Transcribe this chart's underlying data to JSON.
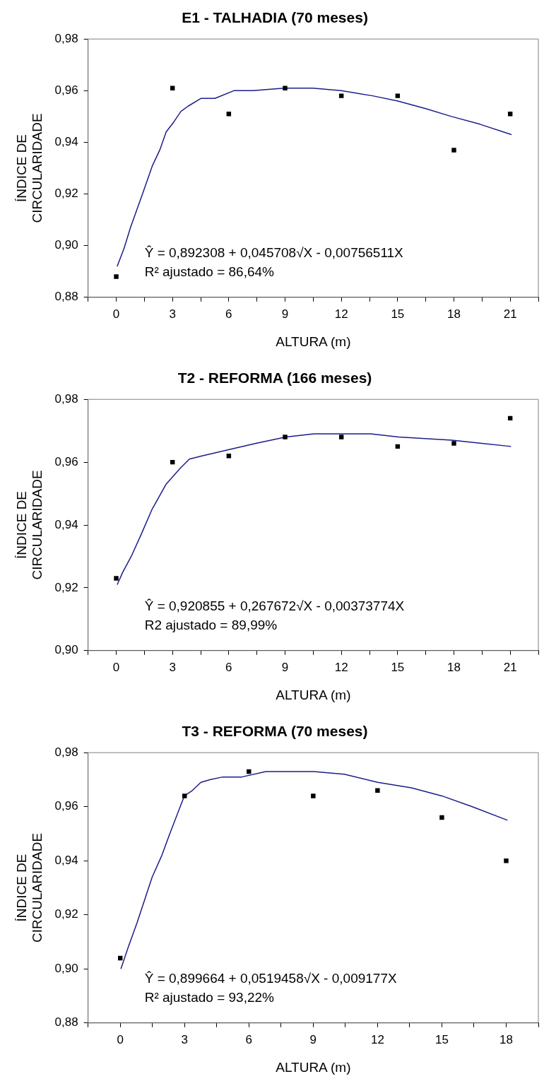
{
  "chart_data": [
    {
      "type": "scatter",
      "title": "E1 - TALHADIA (70 meses)",
      "xlabel": "ALTURA (m)",
      "ylabel": "ÍNDICE DE\nCIRCULARIDADE",
      "xlim": [
        -1.5,
        22.5
      ],
      "xticks": [
        {
          "value": -1.5,
          "label": null
        },
        0,
        {
          "value": 1.5,
          "label": null
        },
        3,
        {
          "value": 4.5,
          "label": null
        },
        6,
        {
          "value": 7.5,
          "label": null
        },
        9,
        {
          "value": 10.5,
          "label": null
        },
        12,
        {
          "value": 13.5,
          "label": null
        },
        15,
        {
          "value": 16.5,
          "label": null
        },
        18,
        {
          "value": 19.5,
          "label": null
        },
        21,
        {
          "value": 22.5,
          "label": null
        }
      ],
      "ylim": [
        0.88,
        0.98
      ],
      "yticks": [
        {
          "value": 0.88,
          "label": "0,88"
        },
        {
          "value": 0.9,
          "label": "0,90"
        },
        {
          "value": 0.92,
          "label": "0,92"
        },
        {
          "value": 0.94,
          "label": "0,94"
        },
        {
          "value": 0.96,
          "label": "0,96"
        },
        {
          "value": 0.98,
          "label": "0,98"
        }
      ],
      "grid": false,
      "legend": false,
      "marker": "square",
      "series": [
        {
          "type": "scatter",
          "color": "#000000",
          "x": [
            0,
            3,
            6,
            9,
            12,
            15,
            18,
            21
          ],
          "values": [
            0.888,
            0.961,
            0.951,
            0.961,
            0.958,
            0.958,
            0.937,
            0.951
          ]
        },
        {
          "type": "line",
          "color": "#1c1c8c",
          "marker": "none",
          "x": [
            0.05,
            0.42,
            0.76,
            1.4,
            1.93,
            2.32,
            2.66,
            3.08,
            3.45,
            3.83,
            4.51,
            5.26,
            6.27,
            7.28,
            8.96,
            10.47,
            11.99,
            13.67,
            15.01,
            16.53,
            17.87,
            19.39,
            21.07
          ],
          "values": [
            0.892,
            0.899,
            0.907,
            0.92,
            0.931,
            0.937,
            0.944,
            0.948,
            0.952,
            0.954,
            0.957,
            0.957,
            0.96,
            0.96,
            0.961,
            0.961,
            0.96,
            0.958,
            0.956,
            0.953,
            0.95,
            0.947,
            0.943
          ]
        }
      ],
      "annotations": [
        "Ŷ = 0,892308 + 0,045708√X - 0,00756511X",
        "R² ajustado = 86,64%"
      ]
    },
    {
      "type": "scatter",
      "title": "T2 - REFORMA (166 meses)",
      "xlabel": "ALTURA (m)",
      "ylabel": "ÍNDICE DE\nCIRCULARIDADE",
      "xlim": [
        -1.5,
        22.5
      ],
      "xticks": [
        {
          "value": -1.5,
          "label": null
        },
        0,
        {
          "value": 1.5,
          "label": null
        },
        3,
        {
          "value": 4.5,
          "label": null
        },
        6,
        {
          "value": 7.5,
          "label": null
        },
        9,
        {
          "value": 10.5,
          "label": null
        },
        12,
        {
          "value": 13.5,
          "label": null
        },
        15,
        {
          "value": 16.5,
          "label": null
        },
        18,
        {
          "value": 19.5,
          "label": null
        },
        21,
        {
          "value": 22.5,
          "label": null
        }
      ],
      "ylim": [
        0.9,
        0.98
      ],
      "yticks": [
        {
          "value": 0.9,
          "label": "0,90"
        },
        {
          "value": 0.92,
          "label": "0,92"
        },
        {
          "value": 0.94,
          "label": "0,94"
        },
        {
          "value": 0.96,
          "label": "0,96"
        },
        {
          "value": 0.98,
          "label": "0,98"
        }
      ],
      "grid": false,
      "legend": false,
      "marker": "square",
      "series": [
        {
          "type": "scatter",
          "color": "#000000",
          "x": [
            0,
            3,
            6,
            9,
            12,
            15,
            18,
            21
          ],
          "values": [
            0.923,
            0.96,
            0.962,
            0.968,
            0.968,
            0.965,
            0.966,
            0.974
          ]
        },
        {
          "type": "line",
          "color": "#1c1c8c",
          "marker": "none",
          "x": [
            0.05,
            0.35,
            0.8,
            1.33,
            1.91,
            2.66,
            3.4,
            3.9,
            4.57,
            6.02,
            7.44,
            9.04,
            10.54,
            13.56,
            15.06,
            17.9,
            19.49,
            21.05
          ],
          "values": [
            0.921,
            0.925,
            0.93,
            0.937,
            0.945,
            0.953,
            0.958,
            0.961,
            0.962,
            0.964,
            0.966,
            0.968,
            0.969,
            0.969,
            0.968,
            0.967,
            0.966,
            0.965
          ]
        }
      ],
      "annotations": [
        "Ŷ = 0,920855 + 0,267672√X - 0,00373774X",
        "R2 ajustado = 89,99%"
      ]
    },
    {
      "type": "scatter",
      "title": "T3 - REFORMA (70 meses)",
      "xlabel": "ALTURA (m)",
      "ylabel": "ÍNDICE DE\nCIRCULARIDADE",
      "xlim": [
        -1.5,
        19.5
      ],
      "xticks": [
        {
          "value": -1.5,
          "label": null
        },
        0,
        {
          "value": 1.5,
          "label": null
        },
        3,
        {
          "value": 4.5,
          "label": null
        },
        6,
        {
          "value": 7.5,
          "label": null
        },
        9,
        {
          "value": 10.5,
          "label": null
        },
        12,
        {
          "value": 13.5,
          "label": null
        },
        15,
        {
          "value": 16.5,
          "label": null
        },
        18,
        {
          "value": 19.5,
          "label": null
        }
      ],
      "ylim": [
        0.88,
        0.98
      ],
      "yticks": [
        {
          "value": 0.88,
          "label": "0,88"
        },
        {
          "value": 0.9,
          "label": "0,90"
        },
        {
          "value": 0.92,
          "label": "0,92"
        },
        {
          "value": 0.94,
          "label": "0,94"
        },
        {
          "value": 0.96,
          "label": "0,96"
        },
        {
          "value": 0.98,
          "label": "0,98"
        }
      ],
      "grid": false,
      "legend": false,
      "marker": "square",
      "series": [
        {
          "type": "scatter",
          "color": "#000000",
          "x": [
            0,
            3,
            6,
            9,
            12,
            15,
            18
          ],
          "values": [
            0.904,
            0.964,
            0.973,
            0.964,
            0.966,
            0.956,
            0.94
          ]
        },
        {
          "type": "line",
          "color": "#1c1c8c",
          "marker": "none",
          "x": [
            0.03,
            0.37,
            0.78,
            1.49,
            1.94,
            2.31,
            2.99,
            3.36,
            3.76,
            4.18,
            4.78,
            5.67,
            6.79,
            9.03,
            10.45,
            12.01,
            13.58,
            15.0,
            16.42,
            18.06
          ],
          "values": [
            0.9,
            0.908,
            0.917,
            0.934,
            0.942,
            0.95,
            0.964,
            0.966,
            0.969,
            0.97,
            0.971,
            0.971,
            0.973,
            0.973,
            0.972,
            0.969,
            0.967,
            0.964,
            0.96,
            0.955
          ]
        }
      ],
      "annotations": [
        "Ŷ = 0,899664 + 0,0519458√X - 0,009177X",
        "R² ajustado = 93,22%"
      ]
    }
  ]
}
